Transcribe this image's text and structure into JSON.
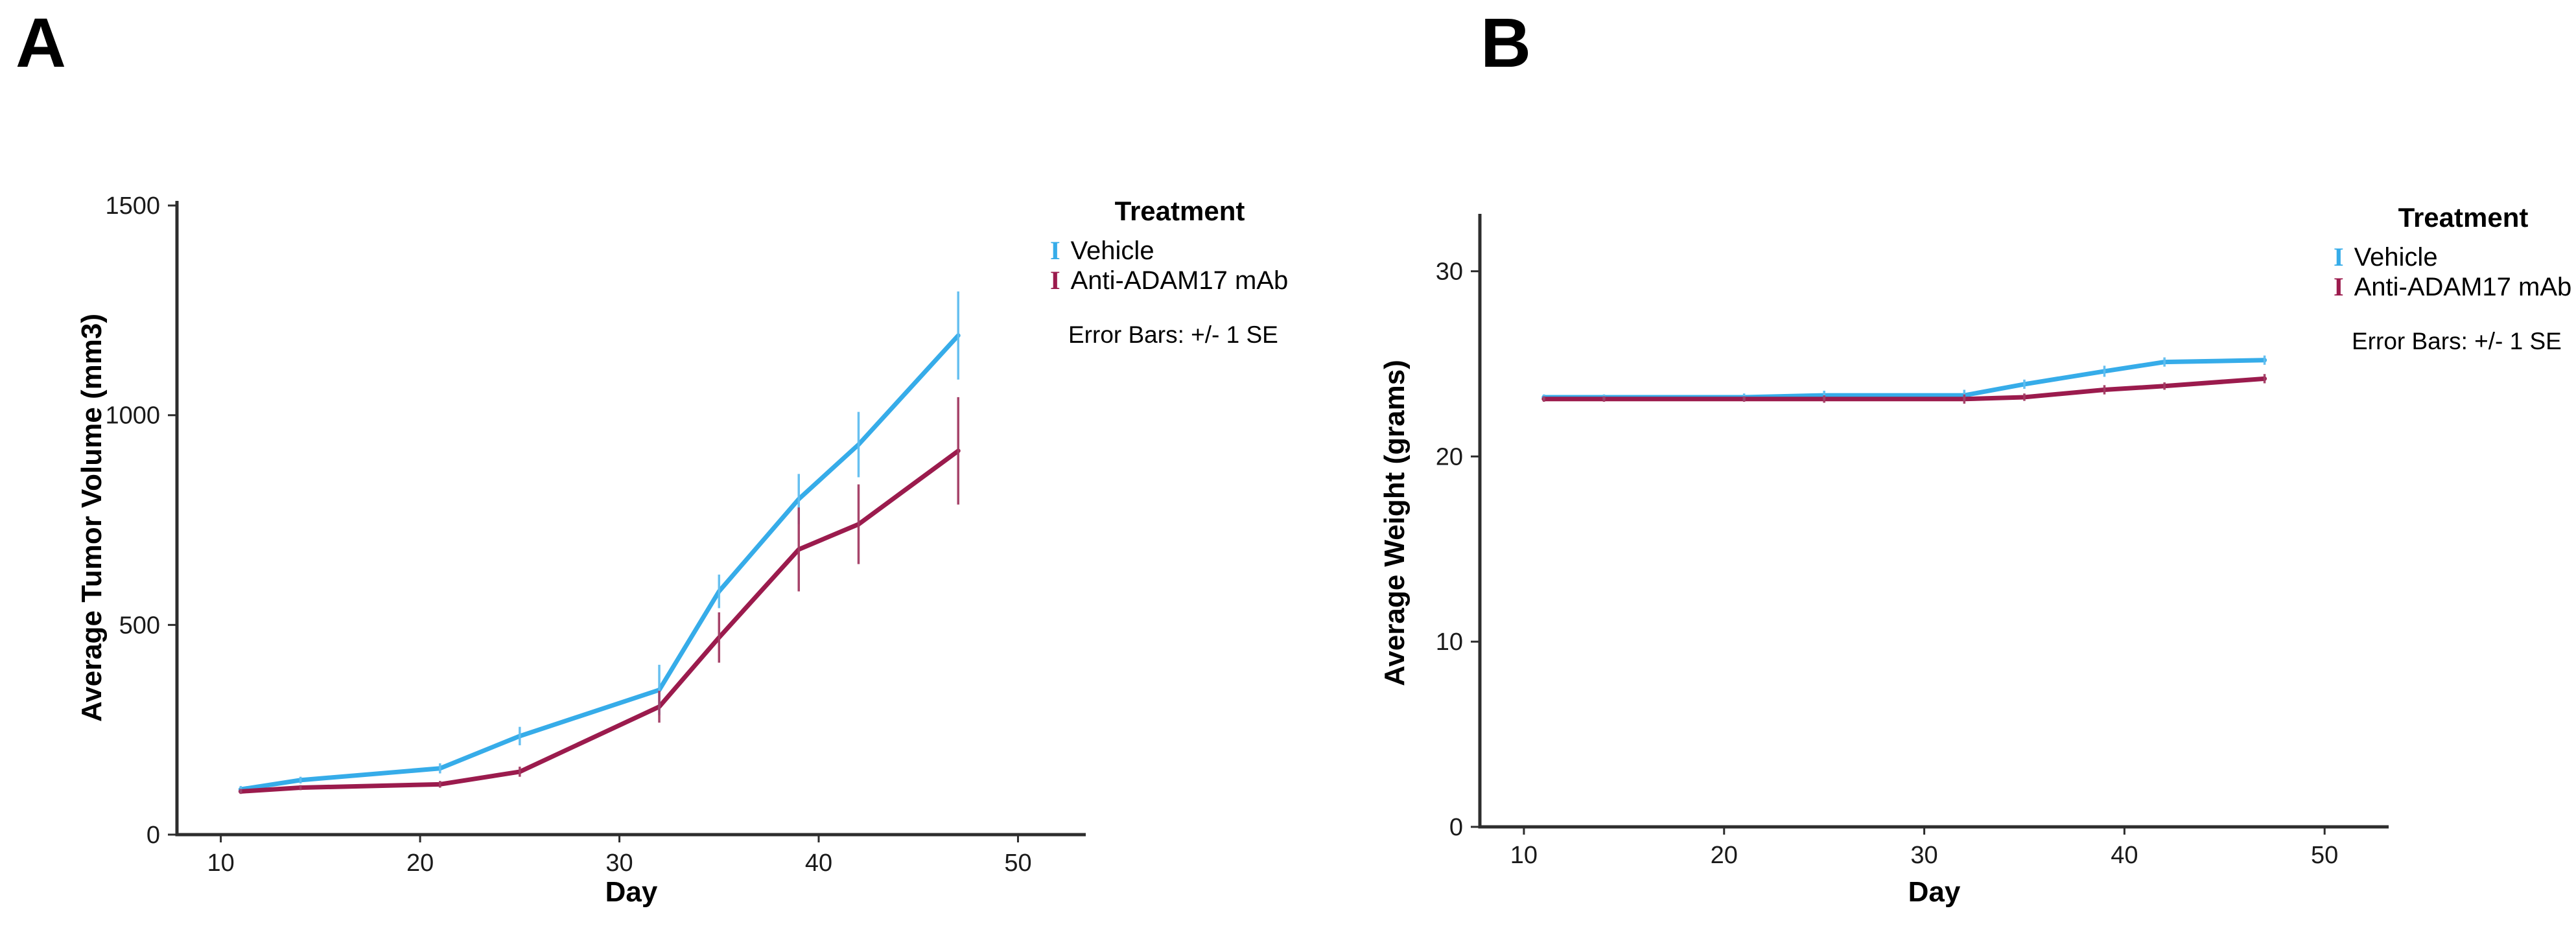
{
  "figure": {
    "background": "#FFFFFF",
    "axis_color": "#2D2D2D",
    "panels": [
      {
        "letter": "A"
      },
      {
        "letter": "B"
      }
    ]
  },
  "legend_shared": {
    "title": "Treatment",
    "glyph": "I",
    "note": "Error Bars: +/- 1 SE"
  },
  "chart_data": [
    {
      "type": "line",
      "panel_letter": "A",
      "title": "",
      "xlabel": "Day",
      "ylabel": "Average Tumor Volume (mm3)",
      "x_days": [
        11,
        14,
        21,
        25,
        32,
        35,
        39,
        42,
        47
      ],
      "series": [
        {
          "name": "Vehicle",
          "color": "#36ACE9",
          "error_color": "#5FBDF0",
          "values": [
            108,
            130,
            158,
            235,
            345,
            580,
            800,
            930,
            1190
          ],
          "se": [
            8,
            8,
            12,
            22,
            60,
            40,
            60,
            78,
            105
          ]
        },
        {
          "name": "Anti-ADAM17 mAb",
          "color": "#9B1B4D",
          "error_color": "#A23B63",
          "values": [
            103,
            112,
            120,
            150,
            305,
            470,
            680,
            740,
            915
          ],
          "se": [
            6,
            6,
            8,
            12,
            38,
            60,
            100,
            95,
            128
          ]
        }
      ],
      "xticks": [
        10,
        20,
        30,
        40,
        50
      ],
      "yticks": [
        0,
        500,
        1000,
        1500
      ],
      "xlim": [
        7.8,
        53.4
      ],
      "ylim": [
        0,
        1511
      ],
      "grid": false,
      "legend_position": "right",
      "legend_title": "Treatment",
      "legend_glyph": "I",
      "legend_note": "Error Bars: +/- 1 SE"
    },
    {
      "type": "line",
      "panel_letter": "B",
      "title": "",
      "xlabel": "Day",
      "ylabel": "Average Weight (grams)",
      "x_days": [
        11,
        14,
        21,
        25,
        32,
        35,
        39,
        42,
        47
      ],
      "series": [
        {
          "name": "Vehicle",
          "color": "#36ACE9",
          "error_color": "#5FBDF0",
          "values": [
            23.2,
            23.2,
            23.2,
            23.3,
            23.3,
            23.9,
            24.6,
            25.1,
            25.2
          ],
          "se": [
            0.15,
            0.15,
            0.2,
            0.25,
            0.3,
            0.25,
            0.3,
            0.25,
            0.25
          ]
        },
        {
          "name": "Anti-ADAM17 mAb",
          "color": "#9B1B4D",
          "error_color": "#A23B63",
          "values": [
            23.1,
            23.1,
            23.1,
            23.1,
            23.1,
            23.2,
            23.6,
            23.8,
            24.2
          ],
          "se": [
            0.15,
            0.15,
            0.15,
            0.2,
            0.25,
            0.2,
            0.25,
            0.2,
            0.25
          ]
        }
      ],
      "xticks": [
        10,
        20,
        30,
        40,
        50
      ],
      "yticks": [
        0,
        10,
        20,
        30
      ],
      "xlim": [
        7.8,
        53.2
      ],
      "ylim": [
        0,
        33.1
      ],
      "grid": false,
      "legend_position": "right",
      "legend_title": "Treatment",
      "legend_glyph": "I",
      "legend_note": "Error Bars: +/- 1 SE"
    }
  ]
}
